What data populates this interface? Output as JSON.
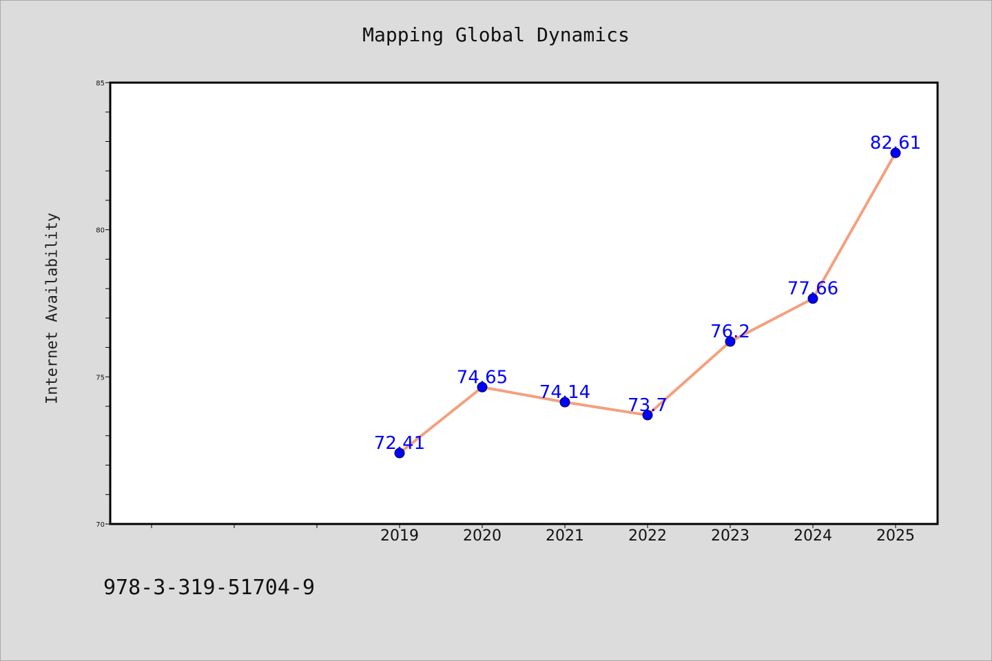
{
  "colors": {
    "background": "#dcdcdc",
    "plot_area": "#ffffff",
    "line": "#f4a07e",
    "marker": "#0000ff",
    "label": "#0000ff"
  },
  "footer": {
    "code": "978-3-319-51704-9"
  },
  "chart_data": {
    "type": "line",
    "title": "Mapping Global Dynamics",
    "xlabel": "",
    "ylabel": "Internet Availability",
    "x": [
      "2019",
      "2020",
      "2021",
      "2022",
      "2023",
      "2024",
      "2025"
    ],
    "values": [
      72.41,
      74.65,
      74.14,
      73.7,
      76.2,
      77.66,
      82.61
    ],
    "data_labels": [
      "72.41",
      "74.65",
      "74.14",
      "73.7",
      "76.2",
      "77.66",
      "82.61"
    ],
    "ylim": [
      70,
      85
    ],
    "yticks": [
      "70",
      "75",
      "80",
      "85"
    ],
    "grid": false,
    "legend": "none"
  }
}
